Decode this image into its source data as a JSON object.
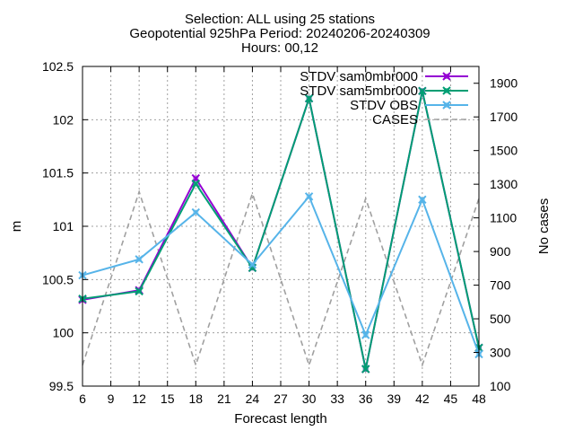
{
  "chart_data": {
    "type": "line",
    "title_lines": [
      "Selection: ALL using    25 stations",
      "Geopotential 925hPa   Period: 20240206-20240309",
      "Hours: 00,12"
    ],
    "xlabel": "Forecast length",
    "ylabel": "m",
    "y2label": "No cases",
    "xlim": [
      6,
      48
    ],
    "ylim": [
      99.5,
      102.5
    ],
    "y2lim": [
      100,
      2000
    ],
    "x_ticks": [
      6,
      9,
      12,
      15,
      18,
      21,
      24,
      27,
      30,
      33,
      36,
      39,
      42,
      45,
      48
    ],
    "y_ticks": [
      "99.5",
      "100",
      "100.5",
      "101",
      "101.5",
      "102",
      "102.5"
    ],
    "y2_ticks": [
      100,
      300,
      500,
      700,
      900,
      1100,
      1300,
      1500,
      1700,
      1900
    ],
    "grid": true,
    "legend_position": "top-right",
    "x": [
      6,
      12,
      18,
      24,
      30,
      36,
      42,
      48
    ],
    "series": [
      {
        "name": "STDV sam0mbr000",
        "axis": "y",
        "color": "#9400d3",
        "marker": "x",
        "dash": false,
        "values": [
          100.31,
          100.4,
          101.45,
          100.61,
          102.2,
          99.66,
          102.27,
          99.86
        ]
      },
      {
        "name": "STDV sam5mbr000",
        "axis": "y",
        "color": "#009e73",
        "marker": "x",
        "dash": false,
        "values": [
          100.32,
          100.39,
          101.4,
          100.61,
          102.2,
          99.66,
          102.27,
          99.86
        ]
      },
      {
        "name": "STDV OBS",
        "axis": "y",
        "color": "#56b4e9",
        "marker": "x",
        "dash": false,
        "values": [
          100.54,
          100.69,
          101.13,
          100.64,
          101.28,
          99.98,
          101.25,
          99.8
        ]
      },
      {
        "name": "CASES",
        "axis": "y2",
        "color": "#a0a0a0",
        "marker": "none",
        "dash": true,
        "x": [
          6,
          12,
          18,
          24,
          30,
          36,
          42,
          48
        ],
        "values": [
          225,
          1255,
          225,
          1245,
          225,
          1215,
          225,
          1215
        ]
      }
    ]
  }
}
